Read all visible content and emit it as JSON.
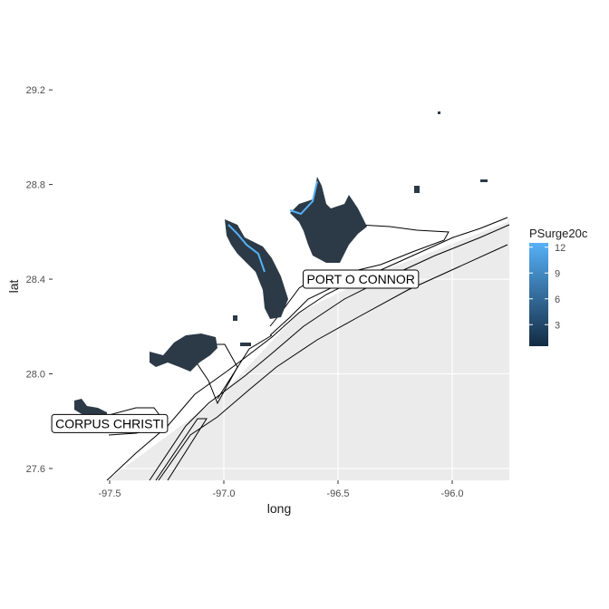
{
  "chart_data": {
    "type": "map",
    "xlabel": "long",
    "ylabel": "lat",
    "x_ticks": [
      -97.5,
      -97.0,
      -96.5,
      -96.0
    ],
    "x_tick_labels": [
      "-97.5",
      "-97.0",
      "-96.5",
      "-96.0"
    ],
    "y_ticks": [
      27.6,
      28.0,
      28.4,
      28.8,
      29.2
    ],
    "y_tick_labels": [
      "27.6",
      "28.0",
      "28.4",
      "28.8",
      "29.2"
    ],
    "xlim": [
      -97.75,
      -95.75
    ],
    "ylim": [
      27.55,
      29.35
    ],
    "legend": {
      "title": "PSurge20c",
      "ticks": [
        3,
        6,
        9,
        12
      ],
      "tick_labels": [
        "3",
        "6",
        "9",
        "12"
      ],
      "range": [
        0.5,
        12.5
      ],
      "low_color": "#132b43",
      "high_color": "#56b1f7",
      "placement": "right"
    },
    "place_labels": [
      {
        "name": "PORT O CONNOR",
        "long": -96.4,
        "lat": 28.4
      },
      {
        "name": "CORPUS CHRISTI",
        "long": -97.5,
        "lat": 27.79
      }
    ],
    "panel_color": "#ebebeb",
    "grid": true
  }
}
